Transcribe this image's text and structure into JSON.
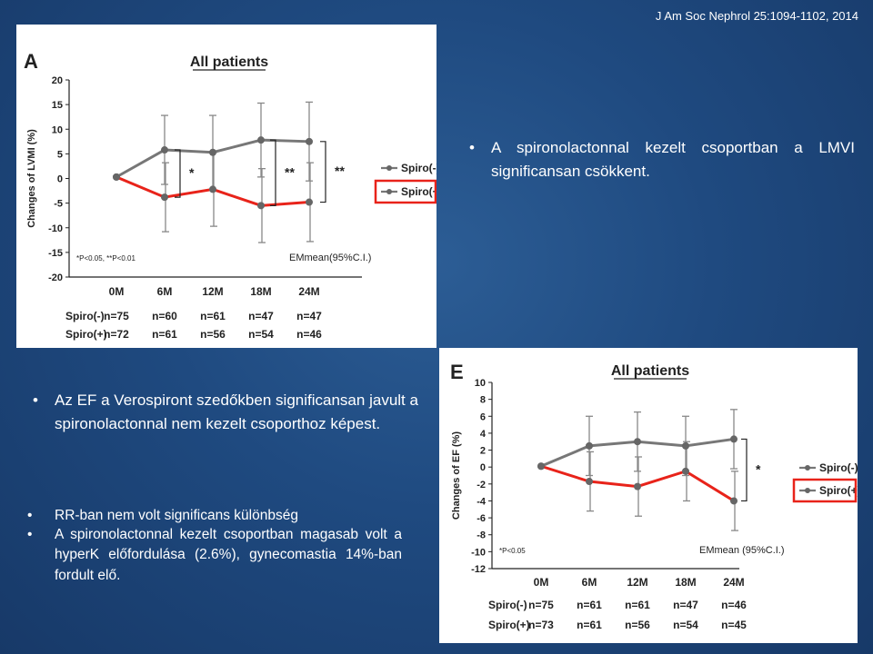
{
  "slide": {
    "citation": "J Am Soc Nephrol 25:1094-1102, 2014",
    "bullets": [
      "A spironolactonnal kezelt csoportban a LMVI significansan csökkent.",
      "Az EF a Verospiront szedőkben significansan javult a spironolactonnal nem kezelt csoporthoz képest.",
      "RR-ban nem volt significans különbség",
      "A spironolactonnal kezelt csoportban magasab volt a hyperK előfordulása (2.6%), gynecomastia 14%-ban fordult elő."
    ]
  },
  "chart_data": [
    {
      "type": "line",
      "panel_letter": "A",
      "title": "All patients",
      "ylabel": "Changes of LVMI (%)",
      "x": [
        "0M",
        "6M",
        "12M",
        "18M",
        "24M"
      ],
      "ylim": [
        -20,
        20
      ],
      "yticks": [
        20,
        15,
        10,
        5,
        0,
        -5,
        -10,
        -15,
        -20
      ],
      "series": [
        {
          "name": "Spiro(-)",
          "color": "#777777",
          "values": [
            0.3,
            5.8,
            5.3,
            7.8,
            7.5
          ],
          "err": [
            null,
            7,
            7.5,
            7.5,
            8
          ],
          "n": [
            "n=75",
            "n=60",
            "n=61",
            "n=47",
            "n=47"
          ]
        },
        {
          "name": "Spiro(+)",
          "color": "#e8231a",
          "values": [
            0.3,
            -3.8,
            -2.2,
            -5.5,
            -4.8
          ],
          "err": [
            null,
            7,
            7.5,
            7.5,
            8
          ],
          "n": [
            "n=72",
            "n=61",
            "n=56",
            "n=54",
            "n=46"
          ]
        }
      ],
      "significance": [
        "*",
        "**",
        "**"
      ],
      "footnote": "*P<0.05, **P<0.01",
      "annotation": "EMmean(95%C.I.)",
      "legend": "right"
    },
    {
      "type": "line",
      "panel_letter": "E",
      "title": "All patients",
      "ylabel": "Changes of EF (%)",
      "x": [
        "0M",
        "6M",
        "12M",
        "18M",
        "24M"
      ],
      "ylim": [
        -12,
        10
      ],
      "yticks": [
        10,
        8,
        6,
        4,
        2,
        0,
        -2,
        -4,
        -6,
        -8,
        -10,
        -12
      ],
      "series": [
        {
          "name": "Spiro(-)",
          "color": "#777777",
          "values": [
            0.1,
            2.5,
            3.0,
            2.5,
            3.3
          ],
          "err": [
            null,
            3.5,
            3.5,
            3.5,
            3.5
          ],
          "n": [
            "n=75",
            "n=61",
            "n=61",
            "n=47",
            "n=46"
          ]
        },
        {
          "name": "Spiro(+)",
          "color": "#e8231a",
          "values": [
            0.1,
            -1.7,
            -2.3,
            -0.5,
            -4.0
          ],
          "err": [
            null,
            3.5,
            3.5,
            3.5,
            3.5
          ],
          "n": [
            "n=73",
            "n=61",
            "n=56",
            "n=54",
            "n=45"
          ]
        }
      ],
      "significance": [
        "*"
      ],
      "footnote": "*P<0.05",
      "annotation": "EMmean (95%C.I.)",
      "legend": "right"
    }
  ]
}
